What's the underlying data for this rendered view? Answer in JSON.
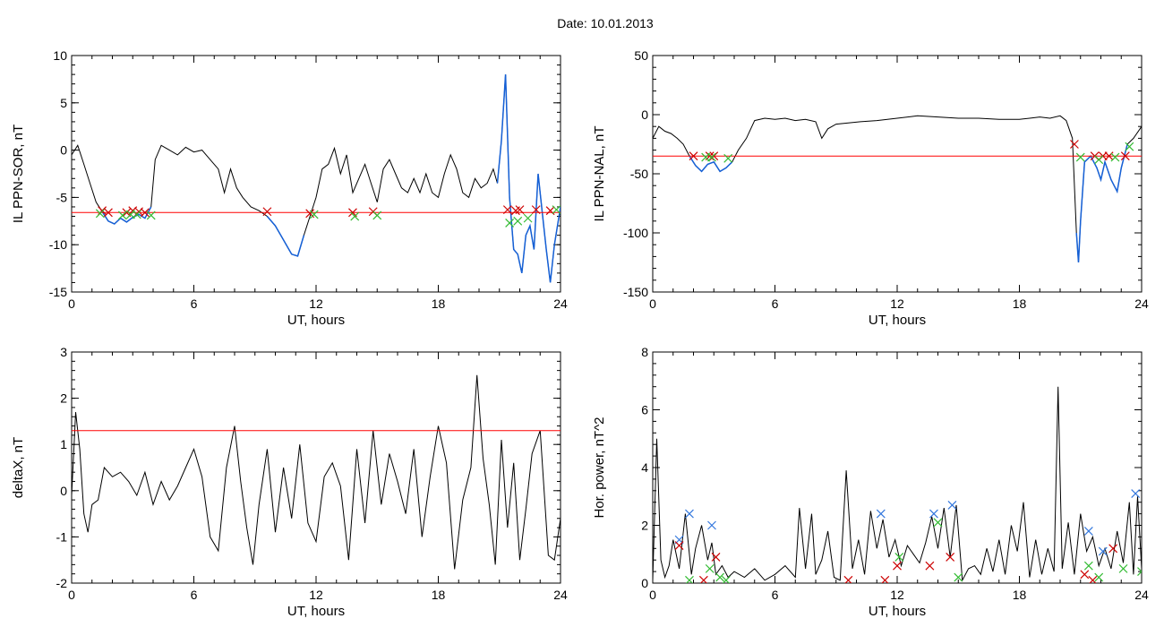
{
  "page": {
    "title": "Date:  10.01.2013"
  },
  "colors": {
    "trace": "#000000",
    "highlight": "#1560d6",
    "threshold": "#ff0000",
    "marker_red": "#cc0000",
    "marker_green": "#33bb33",
    "marker_blue": "#3377dd"
  },
  "chart_data": [
    {
      "id": "p1",
      "type": "line",
      "xlabel": "UT, hours",
      "ylabel": "IL PPN-SOR, nT",
      "xlim": [
        0,
        24
      ],
      "ylim": [
        -15,
        10
      ],
      "xticks": [
        "0",
        "6",
        "12",
        "18",
        "24"
      ],
      "yticks": [
        "-15",
        "-10",
        "-5",
        "0",
        "5",
        "10"
      ],
      "threshold": -6.6,
      "series": [
        {
          "x": [
            0,
            0.3,
            0.6,
            0.9,
            1.2,
            1.5,
            1.8,
            2.1,
            2.4,
            2.7,
            3.0,
            3.3,
            3.6,
            3.9,
            4.1,
            4.4,
            4.8,
            5.2,
            5.6,
            6.0,
            6.4,
            6.8,
            7.2,
            7.5,
            7.8,
            8.1,
            8.4,
            8.8,
            9.2,
            9.6,
            10.0,
            10.4,
            10.8,
            11.1,
            11.4,
            11.7,
            12.0,
            12.3,
            12.6,
            12.9,
            13.2,
            13.5,
            13.8,
            14.1,
            14.4,
            14.7,
            15.0,
            15.3,
            15.6,
            15.9,
            16.2,
            16.5,
            16.8,
            17.1,
            17.4,
            17.7,
            18.0,
            18.3,
            18.6,
            18.9,
            19.2,
            19.5,
            19.8,
            20.1,
            20.4,
            20.7,
            20.9,
            21.1,
            21.3,
            21.5,
            21.7,
            21.9,
            22.1,
            22.3,
            22.5,
            22.7,
            22.9,
            23.1,
            23.3,
            23.5,
            23.7,
            24.0
          ],
          "y": [
            -0.5,
            0.5,
            -1.5,
            -3.5,
            -5.5,
            -6.5,
            -7.5,
            -7.8,
            -7.2,
            -7.6,
            -7.1,
            -6.8,
            -7.2,
            -6.0,
            -1.0,
            0.5,
            0.0,
            -0.5,
            0.3,
            -0.2,
            0.0,
            -1.0,
            -2.0,
            -4.5,
            -2.0,
            -4.0,
            -5.0,
            -6.0,
            -6.4,
            -7.0,
            -8.0,
            -9.5,
            -11.0,
            -11.2,
            -9.0,
            -7.0,
            -5.0,
            -2.0,
            -1.5,
            0.2,
            -2.5,
            -0.5,
            -4.5,
            -3.0,
            -1.5,
            -3.5,
            -5.5,
            -2.0,
            -1.0,
            -2.5,
            -4.0,
            -4.5,
            -3.0,
            -4.5,
            -2.5,
            -4.5,
            -5.0,
            -2.5,
            -0.5,
            -2.0,
            -4.5,
            -5.0,
            -3.0,
            -4.0,
            -3.5,
            -2.0,
            -3.5,
            1.0,
            8.0,
            -5.0,
            -10.5,
            -11.0,
            -13.0,
            -9.0,
            -8.0,
            -10.5,
            -2.5,
            -6.5,
            -10.5,
            -14.0,
            -10.0,
            -6.0
          ]
        }
      ],
      "highlight_ranges": [
        [
          1.3,
          3.9
        ],
        [
          9.6,
          11.6
        ],
        [
          20.9,
          24
        ]
      ],
      "markers": [
        {
          "color": "red",
          "x": [
            1.5,
            1.8,
            2.7,
            3.0,
            3.3,
            3.6,
            9.6,
            11.7,
            13.8,
            14.8,
            21.4,
            21.8,
            22.0,
            22.8,
            23.5
          ],
          "y": [
            -6.4,
            -6.6,
            -6.6,
            -6.4,
            -6.5,
            -6.6,
            -6.5,
            -6.7,
            -6.6,
            -6.5,
            -6.3,
            -6.4,
            -6.3,
            -6.3,
            -6.4
          ]
        },
        {
          "color": "green",
          "x": [
            1.4,
            2.5,
            2.9,
            3.2,
            3.9,
            11.9,
            13.9,
            15.0,
            21.5,
            21.9,
            22.4,
            23.8
          ],
          "y": [
            -6.7,
            -6.9,
            -6.8,
            -6.8,
            -6.9,
            -6.8,
            -7.0,
            -6.9,
            -7.7,
            -7.5,
            -7.2,
            -6.3
          ]
        }
      ]
    },
    {
      "id": "p2",
      "type": "line",
      "xlabel": "UT, hours",
      "ylabel": "IL PPN-NAL, nT",
      "xlim": [
        0,
        24
      ],
      "ylim": [
        -150,
        50
      ],
      "xticks": [
        "0",
        "6",
        "12",
        "18",
        "24"
      ],
      "yticks": [
        "-150",
        "-100",
        "-50",
        "0",
        "50"
      ],
      "threshold": -35,
      "series": [
        {
          "x": [
            0,
            0.3,
            0.6,
            0.9,
            1.2,
            1.5,
            1.8,
            2.1,
            2.4,
            2.7,
            3.0,
            3.3,
            3.6,
            3.9,
            4.2,
            4.6,
            5.0,
            5.5,
            6.0,
            6.5,
            7.0,
            7.5,
            8.0,
            8.3,
            8.6,
            9.0,
            9.6,
            10.2,
            11.0,
            12.0,
            13.0,
            14.0,
            15.0,
            16.0,
            17.0,
            18.0,
            18.5,
            19.0,
            19.5,
            20.0,
            20.3,
            20.6,
            20.8,
            20.9,
            21.0,
            21.2,
            21.5,
            21.8,
            22.0,
            22.2,
            22.5,
            22.8,
            23.0,
            23.3,
            23.6,
            24.0
          ],
          "y": [
            -20,
            -10,
            -14,
            -16,
            -20,
            -25,
            -35,
            -43,
            -48,
            -42,
            -40,
            -48,
            -45,
            -40,
            -30,
            -20,
            -5,
            -3,
            -4,
            -3,
            -5,
            -4,
            -6,
            -20,
            -12,
            -8,
            -7,
            -6,
            -5,
            -3,
            -1,
            -2,
            -3,
            -3,
            -4,
            -4,
            -3,
            -2,
            -3,
            -1,
            -5,
            -20,
            -100,
            -125,
            -90,
            -40,
            -35,
            -45,
            -55,
            -40,
            -55,
            -65,
            -45,
            -25,
            -20,
            -10
          ]
        }
      ],
      "highlight_ranges": [
        [
          1.7,
          4.0
        ],
        [
          20.7,
          23.5
        ]
      ],
      "markers": [
        {
          "color": "red",
          "x": [
            2.0,
            2.8,
            3.0,
            20.7,
            21.7,
            22.1,
            22.4,
            23.2
          ],
          "y": [
            -35,
            -35,
            -35,
            -25,
            -35,
            -35,
            -35,
            -35
          ]
        },
        {
          "color": "green",
          "x": [
            2.6,
            2.9,
            3.7,
            21.0,
            21.9,
            22.7,
            23.4
          ],
          "y": [
            -36,
            -36,
            -37,
            -36,
            -38,
            -36,
            -27
          ]
        }
      ]
    },
    {
      "id": "p3",
      "type": "line",
      "xlabel": "UT, hours",
      "ylabel": "deltaX, nT",
      "xlim": [
        0,
        24
      ],
      "ylim": [
        -2,
        3
      ],
      "xticks": [
        "0",
        "6",
        "12",
        "18",
        "24"
      ],
      "yticks": [
        "-2",
        "-1",
        "0",
        "1",
        "2",
        "3"
      ],
      "threshold": 1.3,
      "series": [
        {
          "x": [
            0,
            0.2,
            0.4,
            0.6,
            0.8,
            1.0,
            1.3,
            1.6,
            2.0,
            2.4,
            2.8,
            3.2,
            3.6,
            4.0,
            4.4,
            4.8,
            5.2,
            5.6,
            6.0,
            6.4,
            6.8,
            7.2,
            7.6,
            8.0,
            8.3,
            8.6,
            8.9,
            9.2,
            9.6,
            10.0,
            10.4,
            10.8,
            11.2,
            11.6,
            12.0,
            12.4,
            12.8,
            13.2,
            13.6,
            14.0,
            14.4,
            14.8,
            15.2,
            15.6,
            16.0,
            16.4,
            16.8,
            17.2,
            17.6,
            18.0,
            18.4,
            18.8,
            19.2,
            19.6,
            19.9,
            20.2,
            20.5,
            20.8,
            21.1,
            21.4,
            21.7,
            22.0,
            22.3,
            22.6,
            23.0,
            23.4,
            23.7,
            24.0
          ],
          "y": [
            -0.1,
            1.7,
            0.9,
            -0.5,
            -0.9,
            -0.3,
            -0.2,
            0.5,
            0.3,
            0.4,
            0.2,
            -0.1,
            0.4,
            -0.3,
            0.2,
            -0.2,
            0.1,
            0.5,
            0.9,
            0.3,
            -1.0,
            -1.3,
            0.5,
            1.4,
            0.2,
            -0.8,
            -1.6,
            -0.3,
            0.9,
            -0.9,
            0.5,
            -0.6,
            1.0,
            -0.7,
            -1.1,
            0.3,
            0.6,
            0.1,
            -1.5,
            0.9,
            -0.7,
            1.3,
            -0.3,
            0.8,
            0.2,
            -0.5,
            0.9,
            -1.0,
            0.3,
            1.4,
            0.6,
            -1.7,
            -0.2,
            0.5,
            2.5,
            0.7,
            -0.3,
            -1.6,
            1.1,
            -0.8,
            0.6,
            -1.5,
            -0.4,
            0.8,
            1.3,
            -1.4,
            -1.5,
            -0.6
          ]
        }
      ],
      "highlight_ranges": [],
      "markers": []
    },
    {
      "id": "p4",
      "type": "line",
      "xlabel": "UT, hours",
      "ylabel": "Hor. power, nT^2",
      "xlim": [
        0,
        24
      ],
      "ylim": [
        0,
        8
      ],
      "xticks": [
        "0",
        "6",
        "12",
        "18",
        "24"
      ],
      "yticks": [
        "0",
        "2",
        "4",
        "6",
        "8"
      ],
      "threshold": null,
      "series": [
        {
          "x": [
            0,
            0.2,
            0.4,
            0.6,
            0.8,
            1.0,
            1.3,
            1.6,
            1.9,
            2.1,
            2.4,
            2.7,
            2.9,
            3.1,
            3.4,
            3.7,
            4.0,
            4.5,
            5.0,
            5.5,
            6.0,
            6.5,
            7.0,
            7.2,
            7.5,
            7.8,
            8.0,
            8.3,
            8.6,
            8.9,
            9.2,
            9.5,
            9.8,
            10.1,
            10.4,
            10.7,
            11.0,
            11.3,
            11.6,
            11.9,
            12.2,
            12.5,
            12.8,
            13.1,
            13.4,
            13.7,
            14.0,
            14.3,
            14.6,
            14.9,
            15.2,
            15.5,
            15.8,
            16.1,
            16.4,
            16.7,
            17.0,
            17.3,
            17.6,
            17.9,
            18.2,
            18.5,
            18.8,
            19.1,
            19.4,
            19.7,
            19.9,
            20.1,
            20.4,
            20.7,
            21.0,
            21.3,
            21.6,
            21.9,
            22.2,
            22.5,
            22.8,
            23.1,
            23.4,
            23.6,
            23.8,
            24.0
          ],
          "y": [
            0.1,
            5.0,
            0.8,
            0.2,
            0.6,
            1.5,
            0.5,
            2.4,
            0.3,
            1.2,
            2.0,
            0.8,
            1.4,
            0.3,
            0.6,
            0.2,
            0.4,
            0.2,
            0.5,
            0.1,
            0.3,
            0.6,
            0.2,
            2.6,
            0.5,
            2.4,
            0.3,
            0.8,
            1.8,
            0.2,
            0.1,
            3.9,
            0.5,
            1.5,
            0.3,
            2.5,
            1.2,
            2.2,
            0.9,
            1.5,
            0.6,
            1.3,
            1.0,
            0.7,
            1.4,
            2.3,
            1.2,
            2.6,
            0.9,
            2.7,
            0.1,
            0.5,
            0.6,
            0.3,
            1.2,
            0.4,
            1.5,
            0.3,
            2.0,
            1.1,
            2.8,
            0.2,
            1.5,
            0.3,
            1.2,
            0.4,
            6.8,
            0.5,
            2.1,
            0.3,
            2.4,
            1.1,
            1.6,
            0.6,
            1.2,
            0.5,
            1.8,
            0.7,
            2.8,
            0.3,
            3.0,
            0.5
          ]
        }
      ],
      "highlight_ranges": [],
      "markers": [
        {
          "color": "blue",
          "x": [
            1.3,
            1.8,
            2.9,
            11.2,
            13.8,
            14.7,
            21.4,
            22.1,
            23.7
          ],
          "y": [
            1.5,
            2.4,
            2.0,
            2.4,
            2.4,
            2.7,
            1.8,
            1.1,
            3.1
          ]
        },
        {
          "color": "red",
          "x": [
            1.3,
            2.5,
            3.1,
            9.6,
            11.4,
            12.0,
            13.6,
            14.6,
            21.2,
            21.6,
            22.6
          ],
          "y": [
            1.3,
            0.1,
            0.9,
            0.1,
            0.1,
            0.6,
            0.6,
            0.9,
            0.3,
            0.1,
            1.2
          ]
        },
        {
          "color": "green",
          "x": [
            1.8,
            2.8,
            3.3,
            3.6,
            12.1,
            14.0,
            15.0,
            21.4,
            21.9,
            23.1,
            24.0
          ],
          "y": [
            0.1,
            0.5,
            0.2,
            0.1,
            0.9,
            2.1,
            0.2,
            0.6,
            0.2,
            0.5,
            0.4
          ]
        }
      ]
    }
  ]
}
